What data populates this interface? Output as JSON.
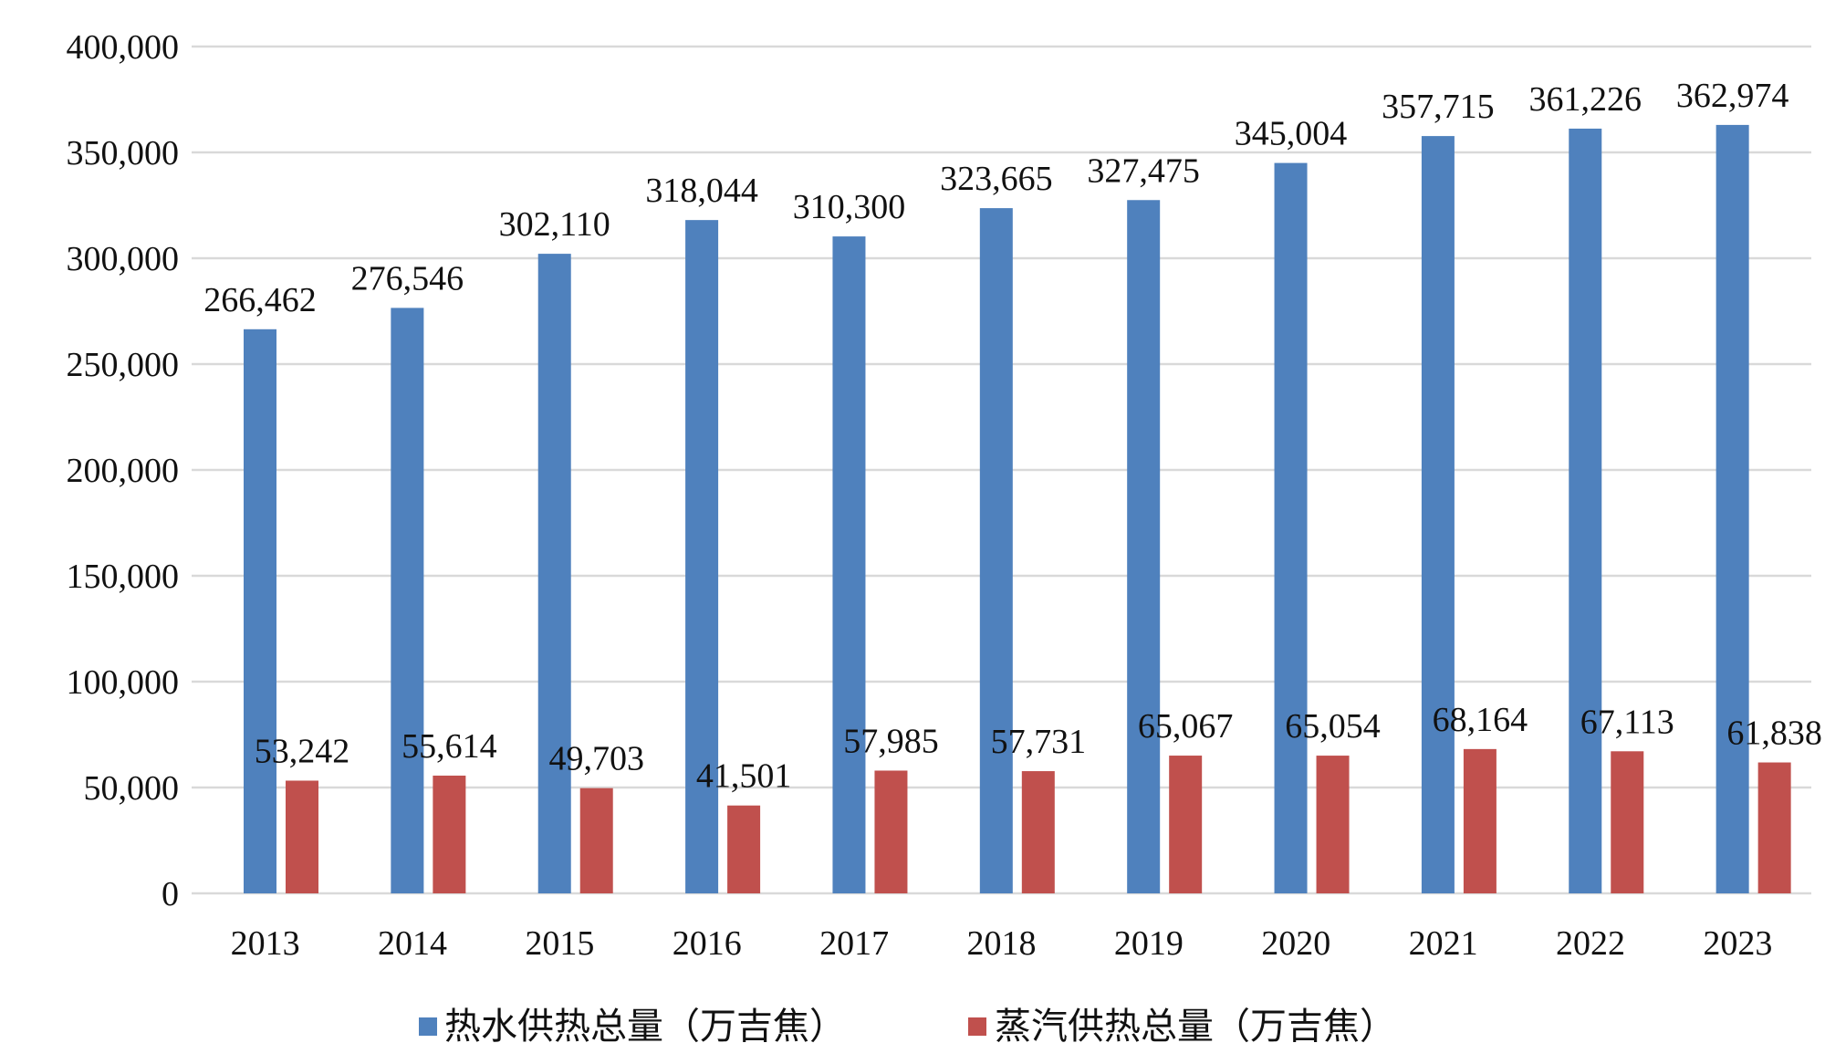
{
  "chart_data": {
    "type": "bar",
    "title": "",
    "xlabel": "",
    "ylabel": "",
    "categories": [
      "2013",
      "2014",
      "2015",
      "2016",
      "2017",
      "2018",
      "2019",
      "2020",
      "2021",
      "2022",
      "2023"
    ],
    "series": [
      {
        "name": "热水供热总量（万吉焦）",
        "color": "#4f81bd",
        "values": [
          266462,
          276546,
          302110,
          318044,
          310300,
          323665,
          327475,
          345004,
          357715,
          361226,
          362974
        ],
        "labels": [
          "266,462",
          "276,546",
          "302,110",
          "318,044",
          "310,300",
          "323,665",
          "327,475",
          "345,004",
          "357,715",
          "361,226",
          "362,974"
        ]
      },
      {
        "name": "蒸汽供热总量（万吉焦）",
        "color": "#c0504d",
        "values": [
          53242,
          55614,
          49703,
          41501,
          57985,
          57731,
          65067,
          65054,
          68164,
          67113,
          61838
        ],
        "labels": [
          "53,242",
          "55,614",
          "49,703",
          "41,501",
          "57,985",
          "57,731",
          "65,067",
          "65,054",
          "68,164",
          "67,113",
          "61,838"
        ]
      }
    ],
    "ylim": [
      0,
      400000
    ],
    "yticks": [
      0,
      50000,
      100000,
      150000,
      200000,
      250000,
      300000,
      350000,
      400000
    ],
    "ytick_labels": [
      "0",
      "50,000",
      "100,000",
      "150,000",
      "200,000",
      "250,000",
      "300,000",
      "350,000",
      "400,000"
    ],
    "grid": true,
    "legend_position": "bottom"
  }
}
